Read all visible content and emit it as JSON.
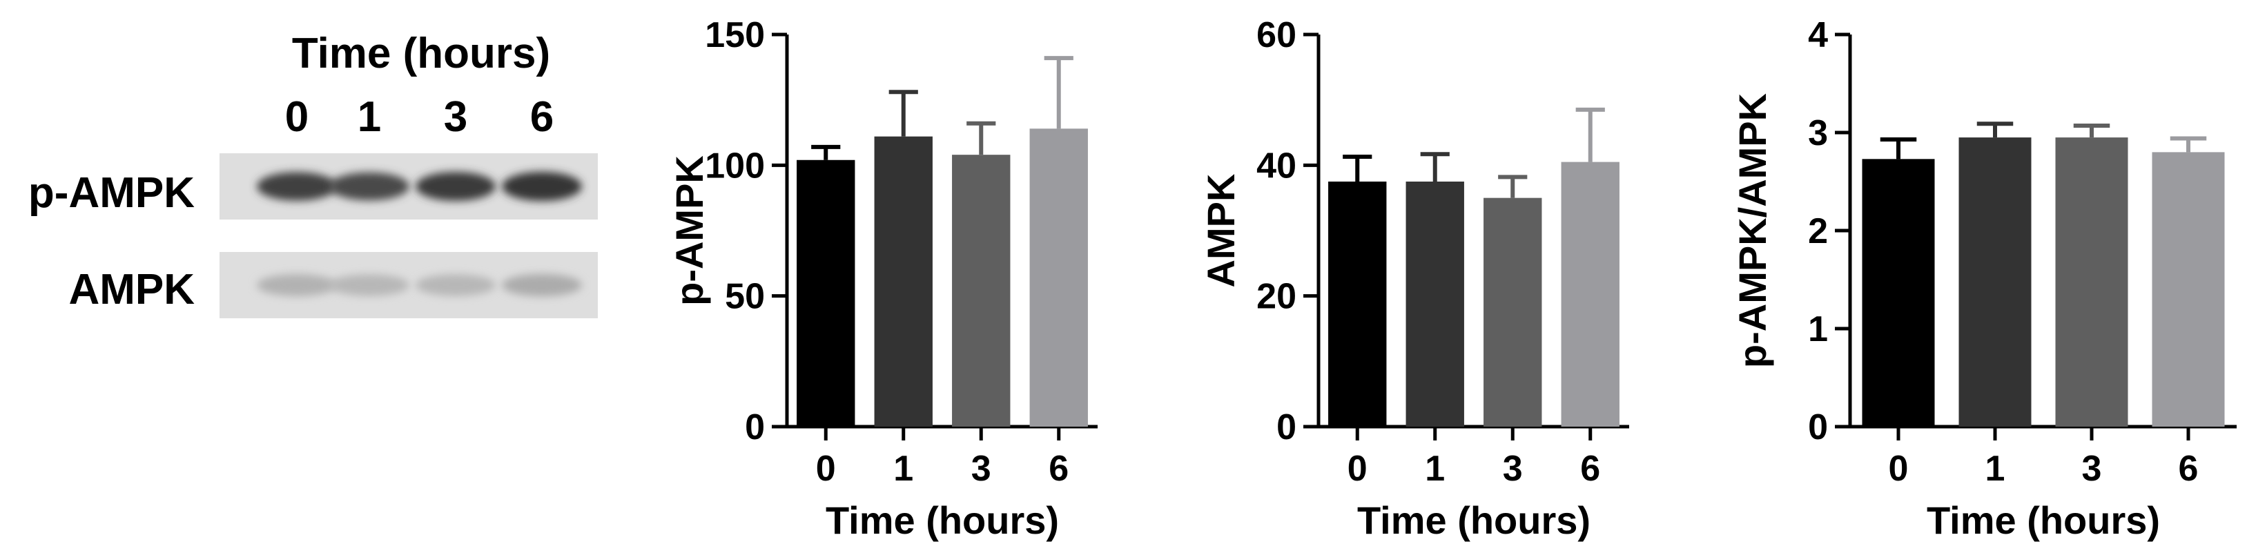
{
  "blot": {
    "header": "Time (hours)",
    "lanes": [
      "0",
      "1",
      "3",
      "6"
    ],
    "rows": [
      {
        "label": "p-AMPK",
        "intensity": [
          0.85,
          0.8,
          0.88,
          0.9
        ]
      },
      {
        "label": "AMPK",
        "intensity": [
          0.25,
          0.22,
          0.22,
          0.28
        ]
      }
    ]
  },
  "colors": {
    "bars": [
      "#000000",
      "#333333",
      "#5f5f5f",
      "#9b9b9f"
    ]
  },
  "chart_data": [
    {
      "type": "bar",
      "categories": [
        "0",
        "1",
        "3",
        "6"
      ],
      "values": [
        102,
        111,
        104,
        114
      ],
      "errors": [
        5,
        17,
        12,
        27
      ],
      "xlabel": "Time (hours)",
      "ylabel": "p-AMPK",
      "ylim": [
        0,
        150
      ],
      "yticks": [
        0,
        50,
        100,
        150
      ]
    },
    {
      "type": "bar",
      "categories": [
        "0",
        "1",
        "3",
        "6"
      ],
      "values": [
        37.5,
        37.5,
        35,
        40.5
      ],
      "errors": [
        3.8,
        4.2,
        3.2,
        8
      ],
      "xlabel": "Time (hours)",
      "ylabel": "AMPK",
      "ylim": [
        0,
        60
      ],
      "yticks": [
        0,
        20,
        40,
        60
      ]
    },
    {
      "type": "bar",
      "categories": [
        "0",
        "1",
        "3",
        "6"
      ],
      "values": [
        2.73,
        2.95,
        2.95,
        2.8
      ],
      "errors": [
        0.2,
        0.14,
        0.12,
        0.14
      ],
      "xlabel": "Time (hours)",
      "ylabel": "p-AMPK/AMPK",
      "ylim": [
        0,
        4
      ],
      "yticks": [
        0,
        1,
        2,
        3,
        4
      ]
    }
  ]
}
